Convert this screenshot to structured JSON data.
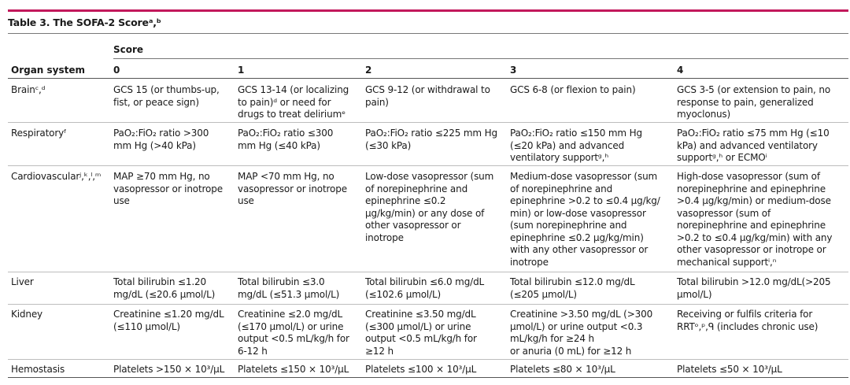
{
  "table": {
    "title": "Table 3. The SOFA-2 Scoreᵃ,ᵇ",
    "score_label": "Score",
    "headers": [
      "Organ system",
      "0",
      "1",
      "2",
      "3",
      "4"
    ],
    "rows": [
      {
        "organ": "Brainᶜ,ᵈ",
        "cells": [
          "GCS 15 (or thumbs-up,\nfist, or peace sign)",
          "GCS 13-14 (or localizing\nto pain)ᵈ or need for\ndrugs to treat deliriumᵉ",
          "GCS 9-12 (or withdrawal to\npain)",
          "GCS 6-8 (or flexion to pain)",
          "GCS 3-5 (or extension to pain, no\nresponse to pain, generalized\nmyoclonus)"
        ]
      },
      {
        "organ": "Respiratoryᶠ",
        "cells": [
          "PaO₂:FiO₂ ratio >300\nmm Hg (>40 kPa)",
          "PaO₂:FiO₂ ratio ≤300\nmm Hg (≤40 kPa)",
          "PaO₂:FiO₂ ratio ≤225 mm Hg\n(≤30 kPa)",
          "PaO₂:FiO₂ ratio ≤150 mm Hg\n(≤20 kPa) and advanced\nventilatory supportᵍ,ʰ",
          "PaO₂:FiO₂ ratio ≤75 mm Hg (≤10\nkPa) and advanced ventilatory\nsupportᵍ,ʰ or ECMOⁱ"
        ]
      },
      {
        "organ": "Cardiovascularʲ,ᵏ,ˡ,ᵐ",
        "cells": [
          "MAP ≥70 mm Hg, no\nvasopressor or inotrope\nuse",
          "MAP <70 mm Hg, no\nvasopressor or inotrope\nuse",
          "Low-dose vasopressor (sum\nof norepinephrine and\nepinephrine ≤0.2\nμg/kg/min) or any dose of\nother vasopressor or\ninotrope",
          "Medium-dose vasopressor (sum\nof norepinephrine and\nepinephrine >0.2 to ≤0.4 μg/kg/\nmin) or low-dose vasopressor\n(sum norepinephrine and\nepinephrine ≤0.2 μg/kg/min)\nwith any other vasopressor or\ninotrope",
          "High-dose vasopressor (sum of\nnorepinephrine and epinephrine\n>0.4 μg/kg/min) or medium-dose\nvasopressor (sum of\nnorepinephrine and epinephrine\n>0.2 to ≤0.4 μg/kg/min) with any\nother vasopressor or inotrope or\nmechanical supportⁱ,ⁿ"
        ]
      },
      {
        "organ": "Liver",
        "cells": [
          "Total bilirubin ≤1.20\nmg/dL (≤20.6 μmol/L)",
          "Total bilirubin ≤3.0\nmg/dL (≤51.3 μmol/L)",
          "Total bilirubin ≤6.0 mg/dL\n(≤102.6 μmol/L)",
          "Total bilirubin ≤12.0 mg/dL\n(≤205 μmol/L)",
          "Total bilirubin >12.0 mg/dL(>205\nμmol/L)"
        ]
      },
      {
        "organ": "Kidney",
        "cells": [
          "Creatinine ≤1.20 mg/dL\n(≤110 μmol/L)",
          "Creatinine ≤2.0 mg/dL\n(≤170 μmol/L) or urine\noutput <0.5 mL/kg/h for\n6-12 h",
          "Creatinine ≤3.50 mg/dL\n(≤300 μmol/L) or urine\noutput <0.5 mL/kg/h for\n≥12 h",
          "Creatinine >3.50 mg/dL (>300\nμmol/L) or urine output <0.3\nmL/kg/h for ≥24 h\nor anuria (0 mL) for ≥12 h",
          "Receiving or fulfils criteria for\nRRTᵒ,ᵖ,ᑫ (includes chronic use)"
        ]
      },
      {
        "organ": "Hemostasis",
        "cells": [
          "Platelets >150 × 10³/μL",
          "Platelets ≤150 × 10³/μL",
          "Platelets ≤100 × 10³/μL",
          "Platelets ≤80 × 10³/μL",
          "Platelets ≤50 × 10³/μL"
        ]
      }
    ]
  }
}
